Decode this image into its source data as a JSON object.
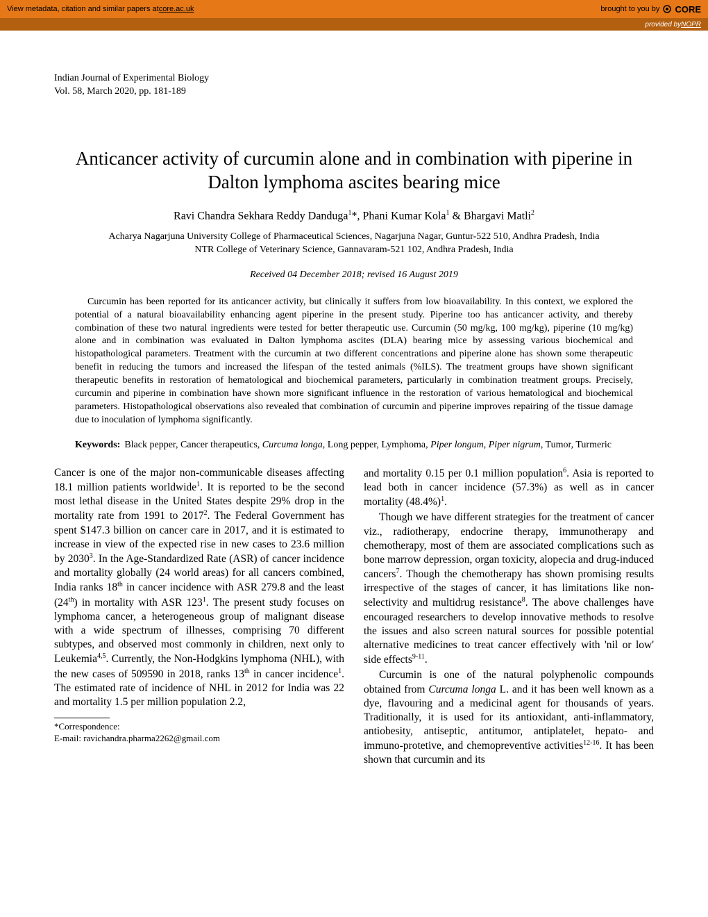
{
  "topbar": {
    "left_text": "View metadata, citation and similar papers at ",
    "left_link": "core.ac.uk",
    "right_text": "brought to you by ",
    "right_logo": "CORE"
  },
  "subbar": {
    "text": "provided by ",
    "link": "NOPR"
  },
  "journal": {
    "name": "Indian Journal of Experimental Biology",
    "volume": "Vol. 58, March 2020, pp. 181-189"
  },
  "title": "Anticancer activity of curcumin alone and in combination with piperine in Dalton lymphoma ascites bearing mice",
  "authors_html": "Ravi Chandra Sekhara Reddy Danduga<sup>1</sup>*, Phani Kumar Kola<sup>1</sup> & Bhargavi Matli<sup>2</sup>",
  "affiliations": {
    "line1": "Acharya Nagarjuna University College of Pharmaceutical Sciences, Nagarjuna Nagar, Guntur-522 510, Andhra Pradesh, India",
    "line2": "NTR College of Veterinary Science, Gannavaram-521 102, Andhra Pradesh, India"
  },
  "received_html": "<span class=\"italic\">Received 04 December 2018</span>; <span class=\"italic\">revised 16 August 2019</span>",
  "abstract": "Curcumin has been reported for its anticancer activity, but clinically it suffers from low bioavailability. In this context, we explored the potential of a natural bioavailability enhancing agent piperine in the present study. Piperine too has anticancer activity, and thereby combination of these two natural ingredients were tested for better therapeutic use. Curcumin (50 mg/kg, 100 mg/kg), piperine (10 mg/kg) alone and in combination was evaluated in Dalton lymphoma ascites (DLA) bearing mice by assessing various biochemical and histopathological parameters. Treatment with the curcumin at two different concentrations and piperine alone has shown some therapeutic benefit in reducing the tumors and increased the lifespan of the tested animals (%ILS). The treatment groups have shown significant therapeutic benefits in restoration of hematological and biochemical parameters, particularly in combination treatment groups. Precisely, curcumin and piperine in combination have shown more significant influence in the restoration of various hematological and biochemical parameters. Histopathological observations also revealed that combination of curcumin and piperine improves repairing of the tissue damage due to inoculation of lymphoma significantly.",
  "keywords": {
    "label": "Keywords:",
    "content_html": "Black pepper, Cancer therapeutics, <span class=\"italic\">Curcuma longa</span>, Long pepper, Lymphoma, <span class=\"italic\">Piper longum</span>, <span class=\"italic\">Piper nigrum</span>, Tumor, Turmeric"
  },
  "body": {
    "col1_p1_html": "Cancer is one of the major non-communicable diseases affecting 18.1 million patients worldwide<sup>1</sup>. It is reported to be the second most lethal disease in the United States despite 29% drop in the mortality rate from 1991 to 2017<sup>2</sup>. The Federal Government has spent $147.3 billion on cancer care in 2017, and it is estimated to increase in view of the expected rise in new cases to 23.6 million by 2030<sup>3</sup>. In the Age-Standardized Rate (ASR) of cancer incidence and mortality globally (24 world areas) for all cancers combined, India ranks 18<sup>th</sup> in cancer incidence with ASR 279.8 and the least (24<sup>th</sup>) in mortality with ASR 123<sup>1</sup>. The present study focuses on lymphoma cancer, a heterogeneous group of malignant disease with a wide spectrum of illnesses, comprising 70 different subtypes, and observed most commonly in children, next only to Leukemia<sup>4,5</sup>. Currently, the Non-Hodgkins lymphoma (NHL), with the new cases of 509590 in 2018, ranks 13<sup>th</sup> in cancer incidence<sup>1</sup>. The estimated rate of incidence of NHL in 2012 for India was 22 and mortality 1.5 per million population 2.2,",
    "col2_p1_html": "and mortality 0.15 per 0.1 million population<sup>6</sup>. Asia is reported to lead both in cancer incidence (57.3%) as well as in cancer mortality (48.4%)<sup>1</sup>.",
    "col2_p2_html": "Though we have different strategies for the treatment of cancer viz., radiotherapy, endocrine therapy, immunotherapy and chemotherapy, most of them are associated complications such as bone marrow depression, organ toxicity, alopecia and drug-induced cancers<sup>7</sup>. Though the chemotherapy has shown promising results irrespective of the stages of cancer, it has limitations like non-selectivity and multidrug resistance<sup>8</sup>. The above challenges have encouraged researchers to develop innovative methods to resolve the issues and also screen natural sources for possible potential alternative medicines to treat cancer effectively with 'nil or low' side effects<sup>9-11</sup>.",
    "col2_p3_html": "Curcumin is one of the natural polyphenolic compounds obtained from <span class=\"italic\">Curcuma longa</span> L. and it has been well known as a dye, flavouring and a medicinal agent for thousands of years. Traditionally, it is used for its antioxidant, anti-inflammatory, antiobesity, antiseptic, antitumor, antiplatelet, hepato- and immuno-protetive, and chemopreventive activities<sup>12-16</sup>. It has been shown that curcumin and its"
  },
  "footnote": {
    "label": "*Correspondence:",
    "email": "E-mail: ravichandra.pharma2262@gmail.com"
  },
  "colors": {
    "topbar_bg": "#e67817",
    "subbar_bg": "#b35f10",
    "text": "#000000",
    "subbar_text": "#ffffff"
  }
}
